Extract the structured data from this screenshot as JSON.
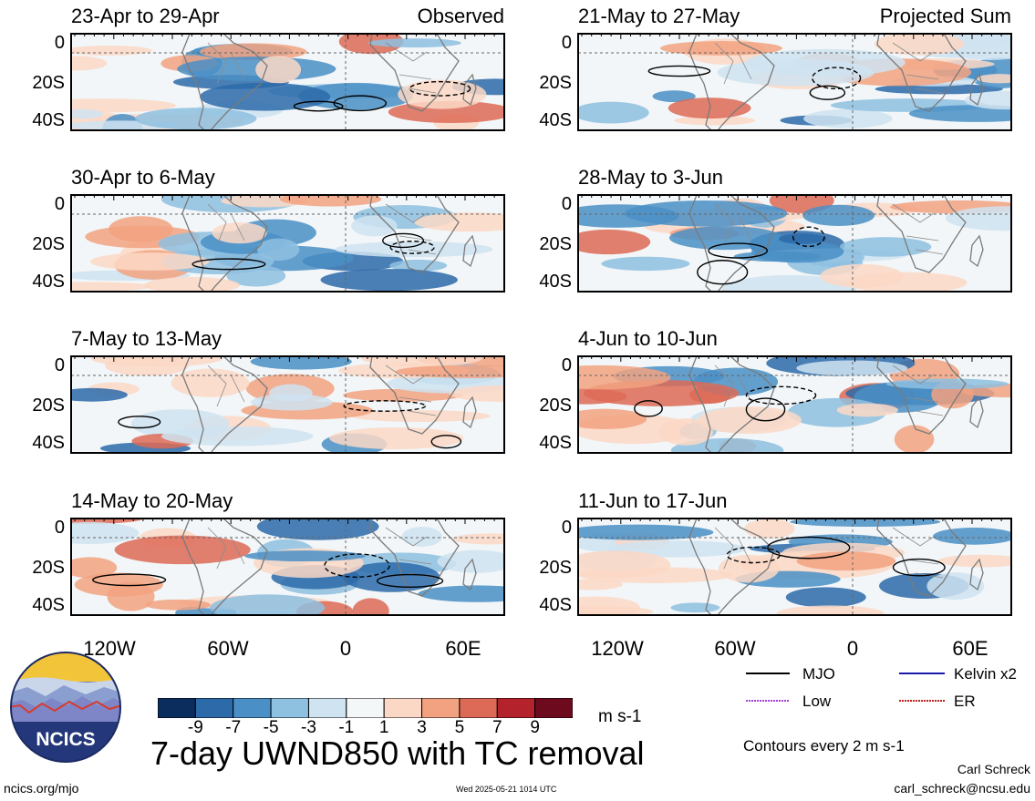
{
  "panels": [
    {
      "title": "23-Apr to 29-Apr",
      "tag": "Observed"
    },
    {
      "title": "30-Apr to 6-May",
      "tag": ""
    },
    {
      "title": "7-May to 13-May",
      "tag": ""
    },
    {
      "title": "14-May to 20-May",
      "tag": ""
    },
    {
      "title": "21-May to 27-May",
      "tag": "Projected Sum"
    },
    {
      "title": "28-May to 3-Jun",
      "tag": ""
    },
    {
      "title": "4-Jun to 10-Jun",
      "tag": ""
    },
    {
      "title": "11-Jun to 17-Jun",
      "tag": ""
    }
  ],
  "y_axis_labels": [
    "0",
    "20S",
    "40S"
  ],
  "x_axis_labels": [
    "120W",
    "60W",
    "0",
    "60E"
  ],
  "colorbar": {
    "ticks": [
      "-9",
      "-7",
      "-5",
      "-3",
      "-1",
      "1",
      "3",
      "5",
      "7",
      "9"
    ],
    "colors": [
      "#0b2d5e",
      "#2c6aa9",
      "#4a8fc6",
      "#8ec0e0",
      "#cfe3f1",
      "#f4f7f7",
      "#fbd8c6",
      "#f2a280",
      "#dd6a56",
      "#b4232c",
      "#6d0a1e"
    ],
    "units": "m s-1"
  },
  "legend": {
    "mjo": "MJO",
    "kelvin": "Kelvin x2",
    "low": "Low",
    "er": "ER",
    "colors": {
      "mjo": "#000000",
      "kelvin": "#1a1aaa",
      "low": "#a040e0",
      "er": "#c02020"
    },
    "contours_note": "Contours every 2 m s-1"
  },
  "logo": {
    "text": "NCICS"
  },
  "main_title": "7-day UWND850 with TC removal",
  "footer": {
    "url": "ncics.org/mjo",
    "timestamp": "Wed 2025-05-21 1014 UTC",
    "author": "Carl Schreck",
    "email": "carl_schreck@ncsu.edu"
  }
}
